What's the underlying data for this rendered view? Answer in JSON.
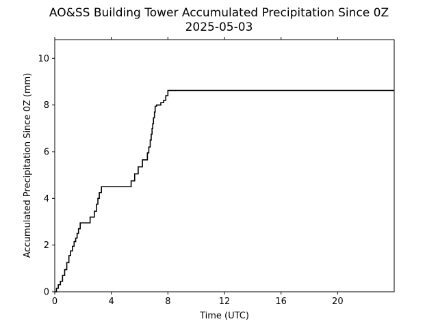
{
  "chart_data": {
    "type": "line",
    "title": "AO&SS Building Tower Accumulated Precipitation Since 0Z",
    "subtitle": "2025-05-03",
    "xlabel": "Time (UTC)",
    "ylabel": "Accumulated Precipitation Since 0Z (mm)",
    "xlim": [
      0,
      24
    ],
    "ylim": [
      0,
      10.8
    ],
    "xticks": [
      0,
      4,
      8,
      12,
      16,
      20
    ],
    "xtick_labels": [
      "0",
      "4",
      "8",
      "12",
      "16",
      "20"
    ],
    "yticks": [
      0,
      2,
      4,
      6,
      8,
      10
    ],
    "ytick_labels": [
      "0",
      "2",
      "4",
      "6",
      "8",
      "10"
    ],
    "grid": false,
    "line_color": "#000000",
    "series": [
      {
        "step": true,
        "x": [
          0,
          0.12,
          0.25,
          0.4,
          0.55,
          0.7,
          0.85,
          1.0,
          1.12,
          1.25,
          1.37,
          1.48,
          1.58,
          1.68,
          1.8,
          2.05,
          2.5,
          2.8,
          2.95,
          3.05,
          3.15,
          3.3,
          3.45,
          5.4,
          5.65,
          5.9,
          6.2,
          6.55,
          6.65,
          6.75,
          6.82,
          6.88,
          6.93,
          6.98,
          7.05,
          7.1,
          7.2,
          7.5,
          7.7,
          7.85,
          8.0,
          8.15,
          24
        ],
        "y": [
          0,
          0.15,
          0.3,
          0.45,
          0.7,
          0.95,
          1.25,
          1.55,
          1.75,
          1.95,
          2.15,
          2.3,
          2.5,
          2.7,
          2.95,
          2.95,
          3.2,
          3.45,
          3.75,
          4.0,
          4.25,
          4.5,
          4.5,
          4.75,
          5.05,
          5.35,
          5.65,
          5.95,
          6.2,
          6.5,
          6.75,
          7.0,
          7.2,
          7.45,
          7.7,
          7.95,
          8.0,
          8.1,
          8.2,
          8.4,
          8.62,
          8.62,
          8.62
        ]
      }
    ]
  }
}
